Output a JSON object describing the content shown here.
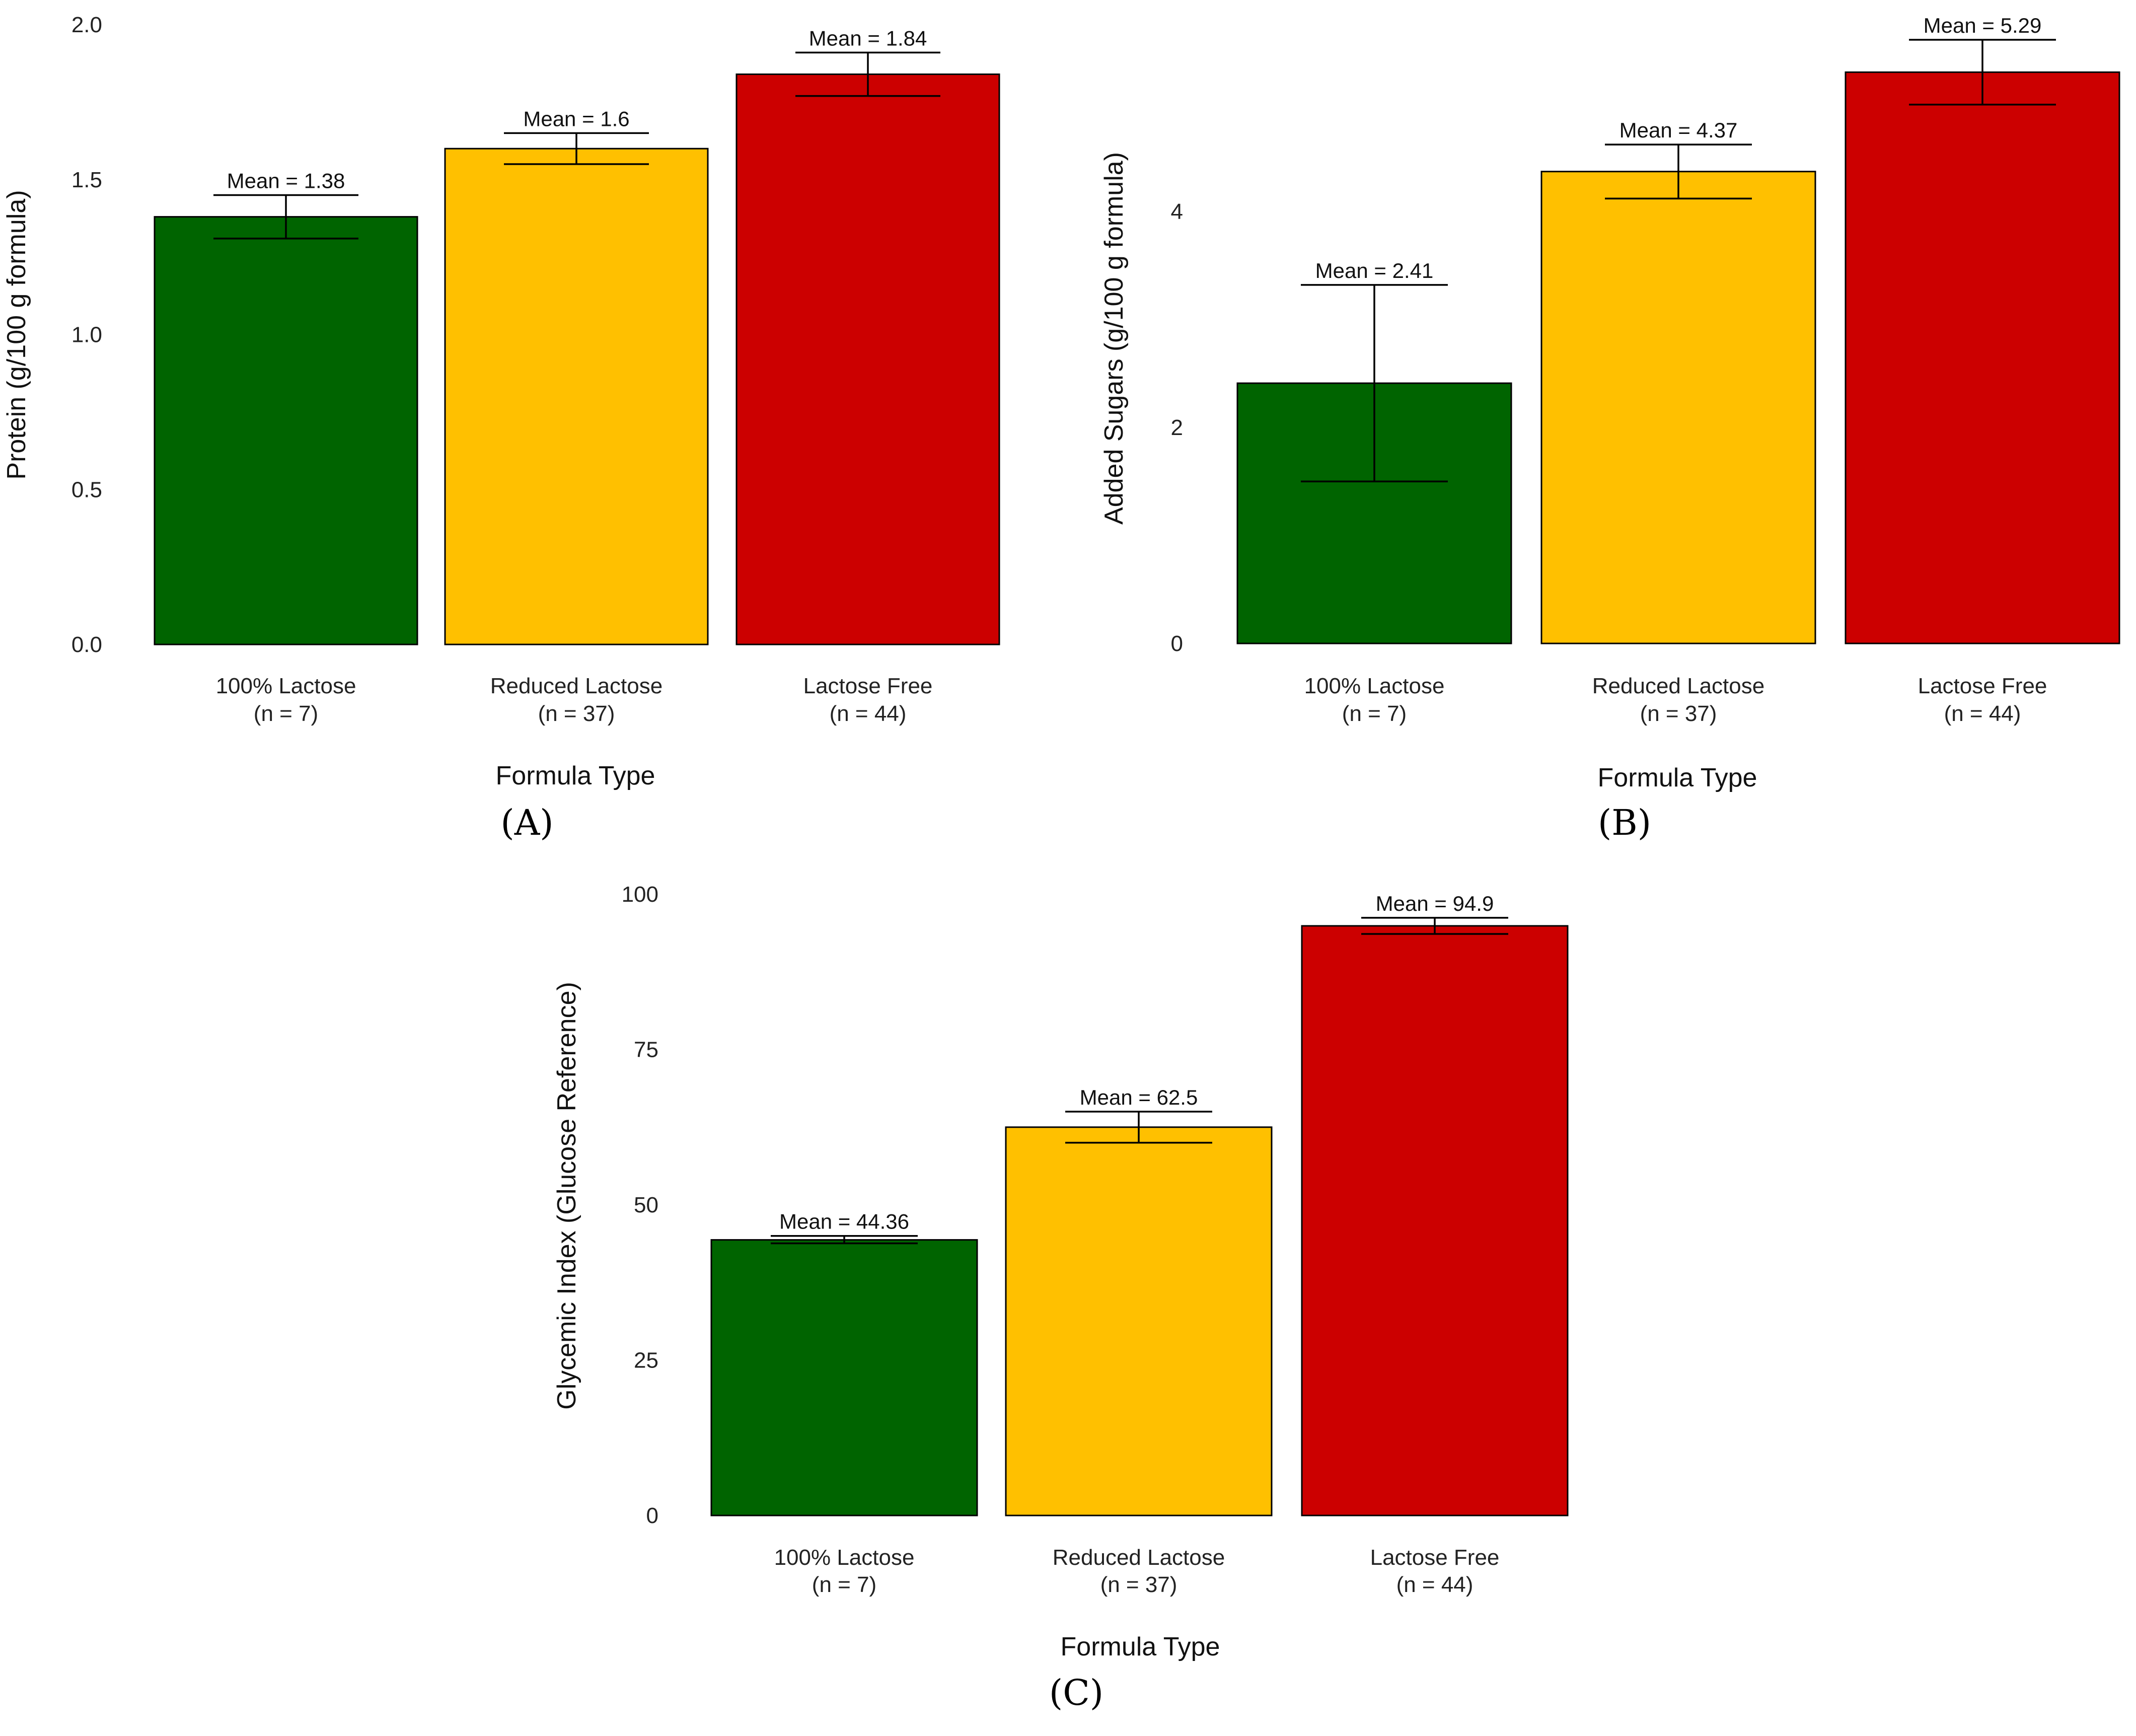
{
  "chart_data": [
    {
      "type": "bar",
      "panel_label": "(A)",
      "categories": [
        "100% Lactose",
        "Reduced Lactose",
        "Lactose Free"
      ],
      "category_n": [
        "(n = 7)",
        "(n = 37)",
        "(n = 44)"
      ],
      "values": [
        1.38,
        1.6,
        1.84
      ],
      "error_low": [
        1.31,
        1.55,
        1.77
      ],
      "error_high": [
        1.45,
        1.65,
        1.91
      ],
      "mean_labels": [
        "Mean = 1.38",
        "Mean = 1.6",
        "Mean = 1.84"
      ],
      "colors": [
        "#006400",
        "#ffc000",
        "#cc0000"
      ],
      "xlabel": "Formula Type",
      "ylabel": "Protein (g/100 g formula)",
      "yticks": [
        0.0,
        0.5,
        1.0,
        1.5,
        2.0
      ],
      "ytick_labels": [
        "0.0",
        "0.5",
        "1.0",
        "1.5",
        "2.0"
      ],
      "ylim": [
        0,
        2.0
      ],
      "grid": false
    },
    {
      "type": "bar",
      "panel_label": "(B)",
      "categories": [
        "100% Lactose",
        "Reduced Lactose",
        "Lactose Free"
      ],
      "category_n": [
        "(n = 7)",
        "(n = 37)",
        "(n = 44)"
      ],
      "values": [
        2.41,
        4.37,
        5.29
      ],
      "error_low": [
        1.5,
        4.12,
        4.99
      ],
      "error_high": [
        3.32,
        4.62,
        5.59
      ],
      "mean_labels": [
        "Mean = 2.41",
        "Mean = 4.37",
        "Mean = 5.29"
      ],
      "colors": [
        "#006400",
        "#ffc000",
        "#cc0000"
      ],
      "xlabel": "Formula Type",
      "ylabel": "Added Sugars (g/100 g formula)",
      "yticks": [
        0,
        2,
        4
      ],
      "ytick_labels": [
        "0",
        "2",
        "4"
      ],
      "ylim": [
        0,
        5.73
      ],
      "grid": false
    },
    {
      "type": "bar",
      "panel_label": "(C)",
      "categories": [
        "100% Lactose",
        "Reduced Lactose",
        "Lactose Free"
      ],
      "category_n": [
        "(n = 7)",
        "(n = 37)",
        "(n = 44)"
      ],
      "values": [
        44.36,
        62.5,
        94.9
      ],
      "error_low": [
        43.8,
        60.0,
        93.6
      ],
      "error_high": [
        45.0,
        65.0,
        96.2
      ],
      "mean_labels": [
        "Mean = 44.36",
        "Mean = 62.5",
        "Mean = 94.9"
      ],
      "colors": [
        "#006400",
        "#ffc000",
        "#cc0000"
      ],
      "xlabel": "Formula Type",
      "ylabel": "Glycemic Index (Glucose Reference)",
      "yticks": [
        0,
        25,
        50,
        75,
        100
      ],
      "ytick_labels": [
        "0",
        "25",
        "50",
        "75",
        "100"
      ],
      "ylim": [
        0,
        100
      ],
      "grid": false
    }
  ]
}
